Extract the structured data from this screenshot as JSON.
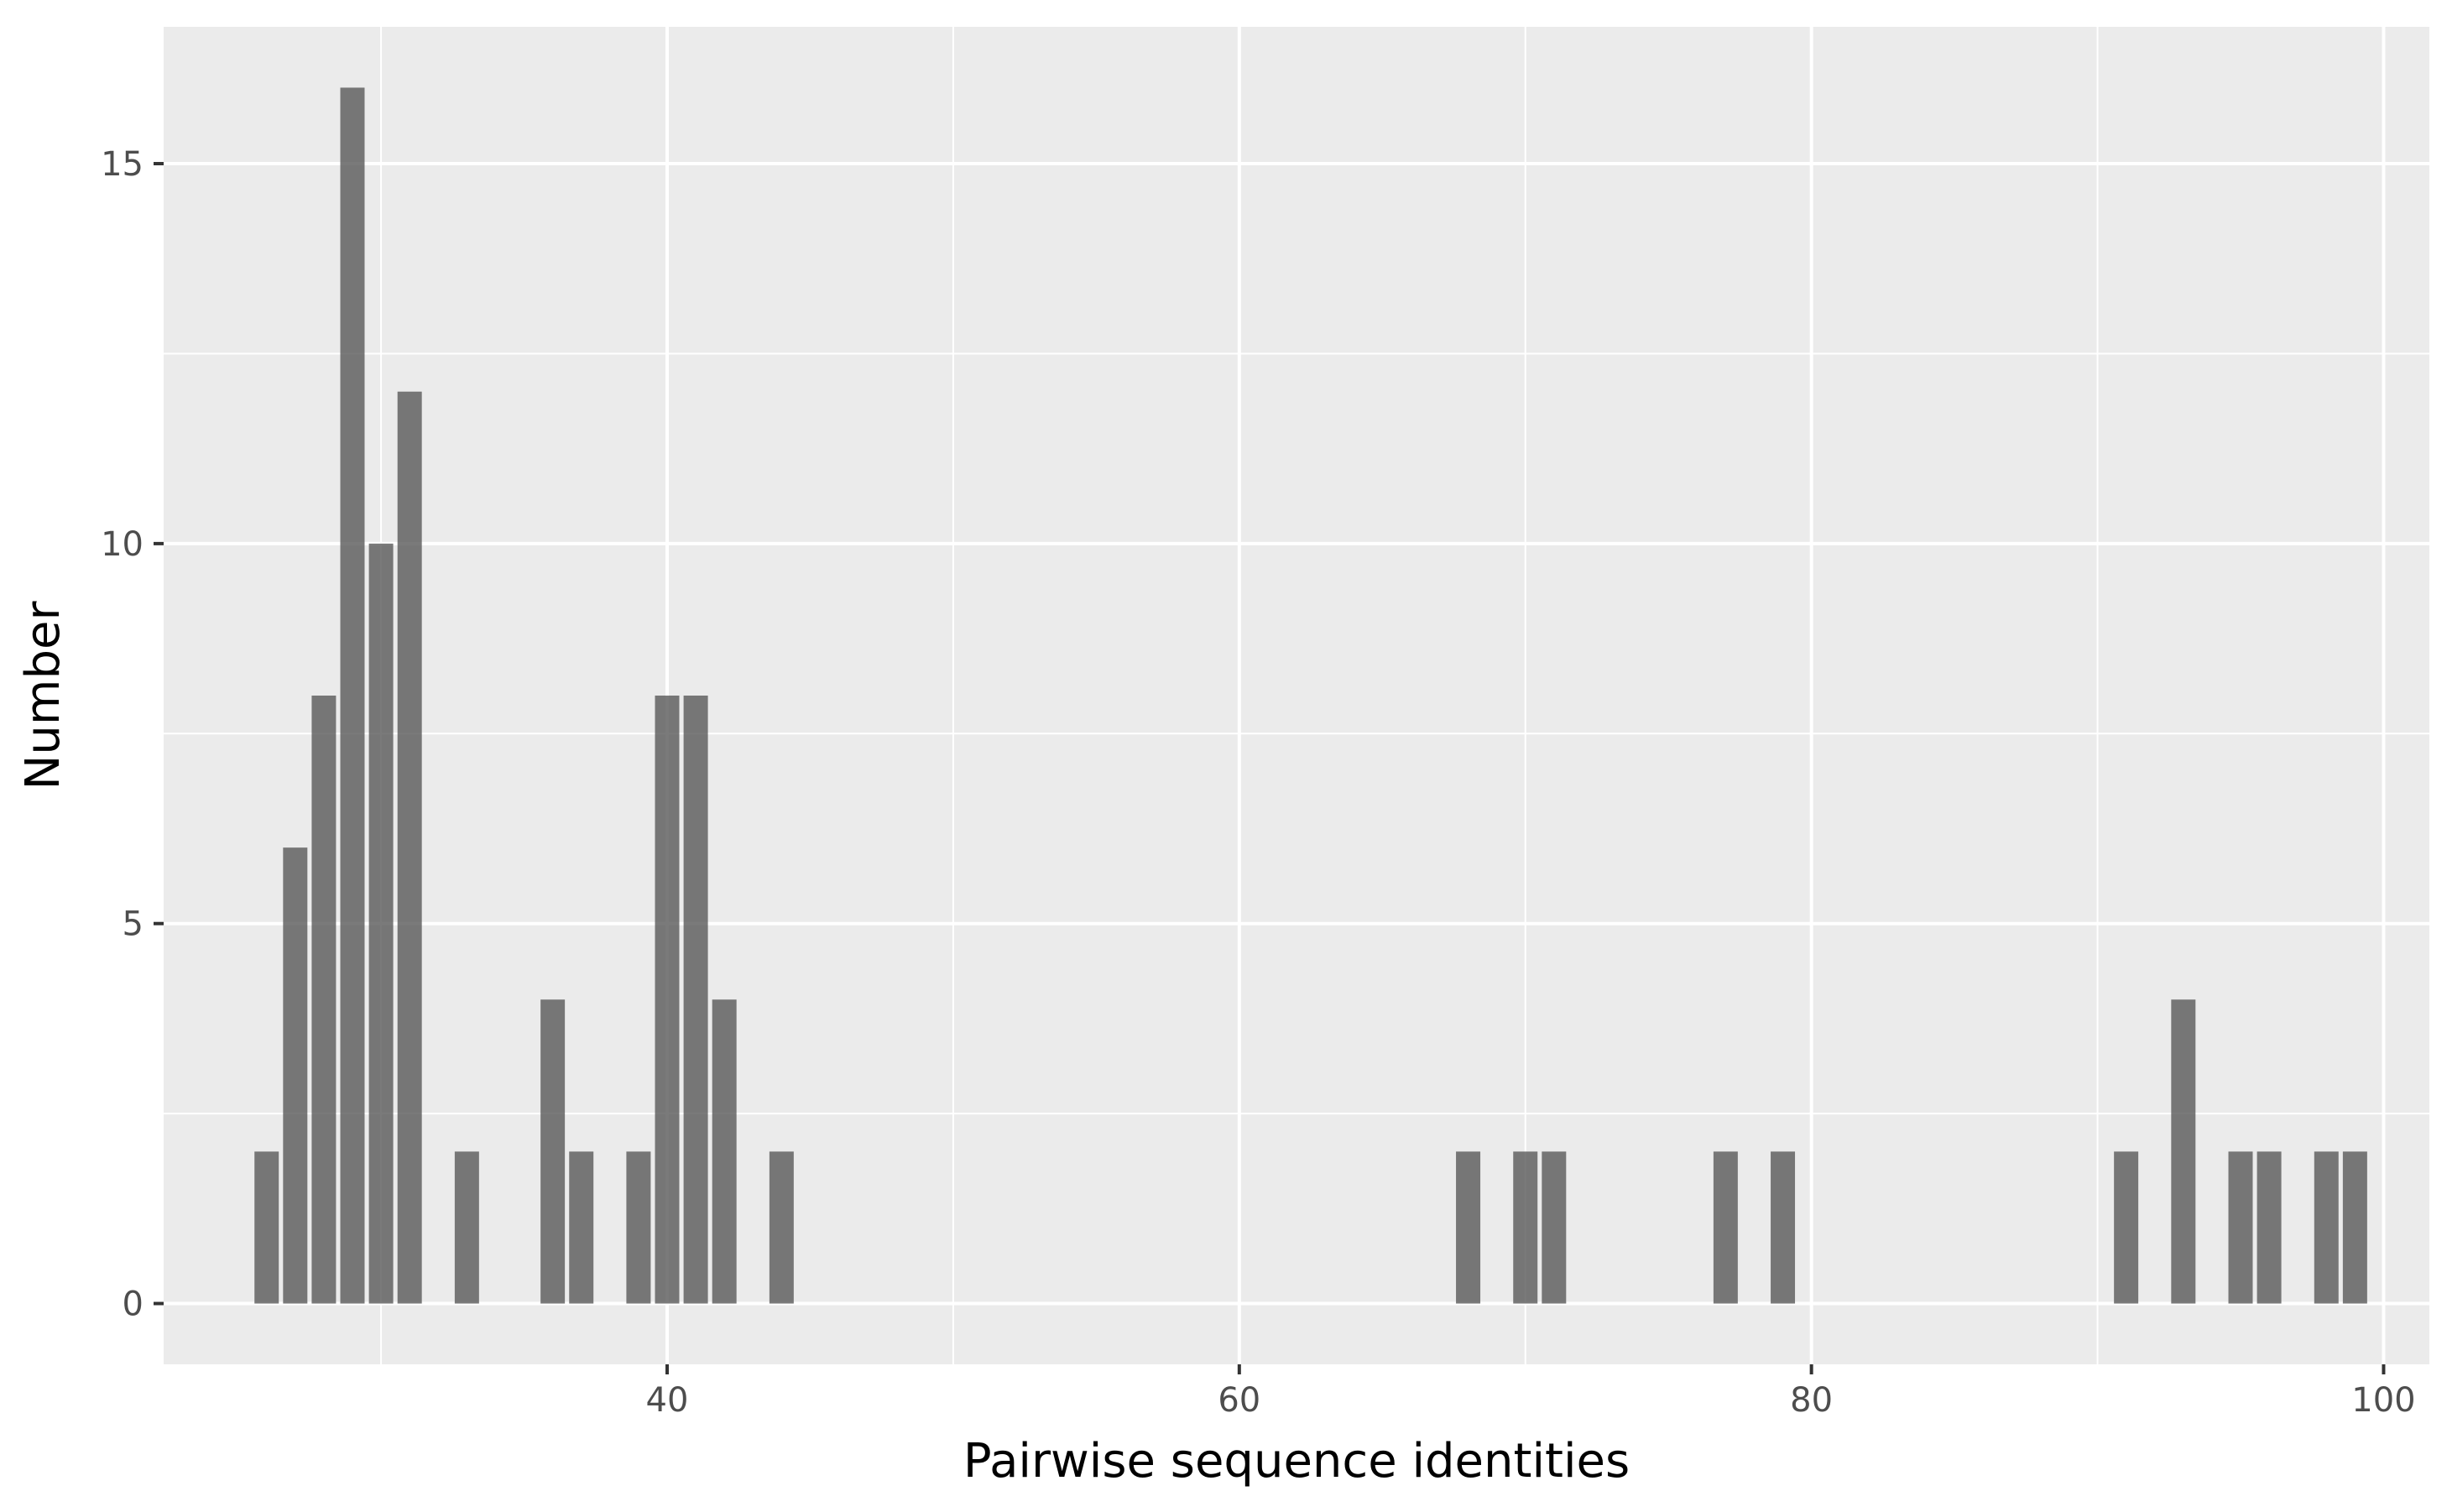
{
  "chart_data": {
    "type": "bar",
    "title": "",
    "xlabel": "Pairwise sequence identities",
    "ylabel": "Number",
    "xlim": [
      22.4,
      101.6
    ],
    "ylim": [
      -0.8,
      16.8
    ],
    "x_ticks": [
      40,
      60,
      80,
      100
    ],
    "y_ticks": [
      0,
      5,
      10,
      15
    ],
    "grid": true,
    "bar_color": "#595959",
    "bar_opacity": 0.8,
    "panel_color": "#EBEBEB",
    "x": [
      26,
      27,
      28,
      29,
      30,
      31,
      33,
      36,
      37,
      39,
      40,
      41,
      42,
      44,
      68,
      70,
      71,
      77,
      79,
      91,
      93,
      95,
      96,
      98,
      99
    ],
    "values": [
      2,
      6,
      8,
      16,
      10,
      12,
      2,
      4,
      2,
      2,
      8,
      8,
      4,
      2,
      2,
      2,
      2,
      2,
      2,
      2,
      4,
      2,
      2,
      2,
      2
    ]
  }
}
